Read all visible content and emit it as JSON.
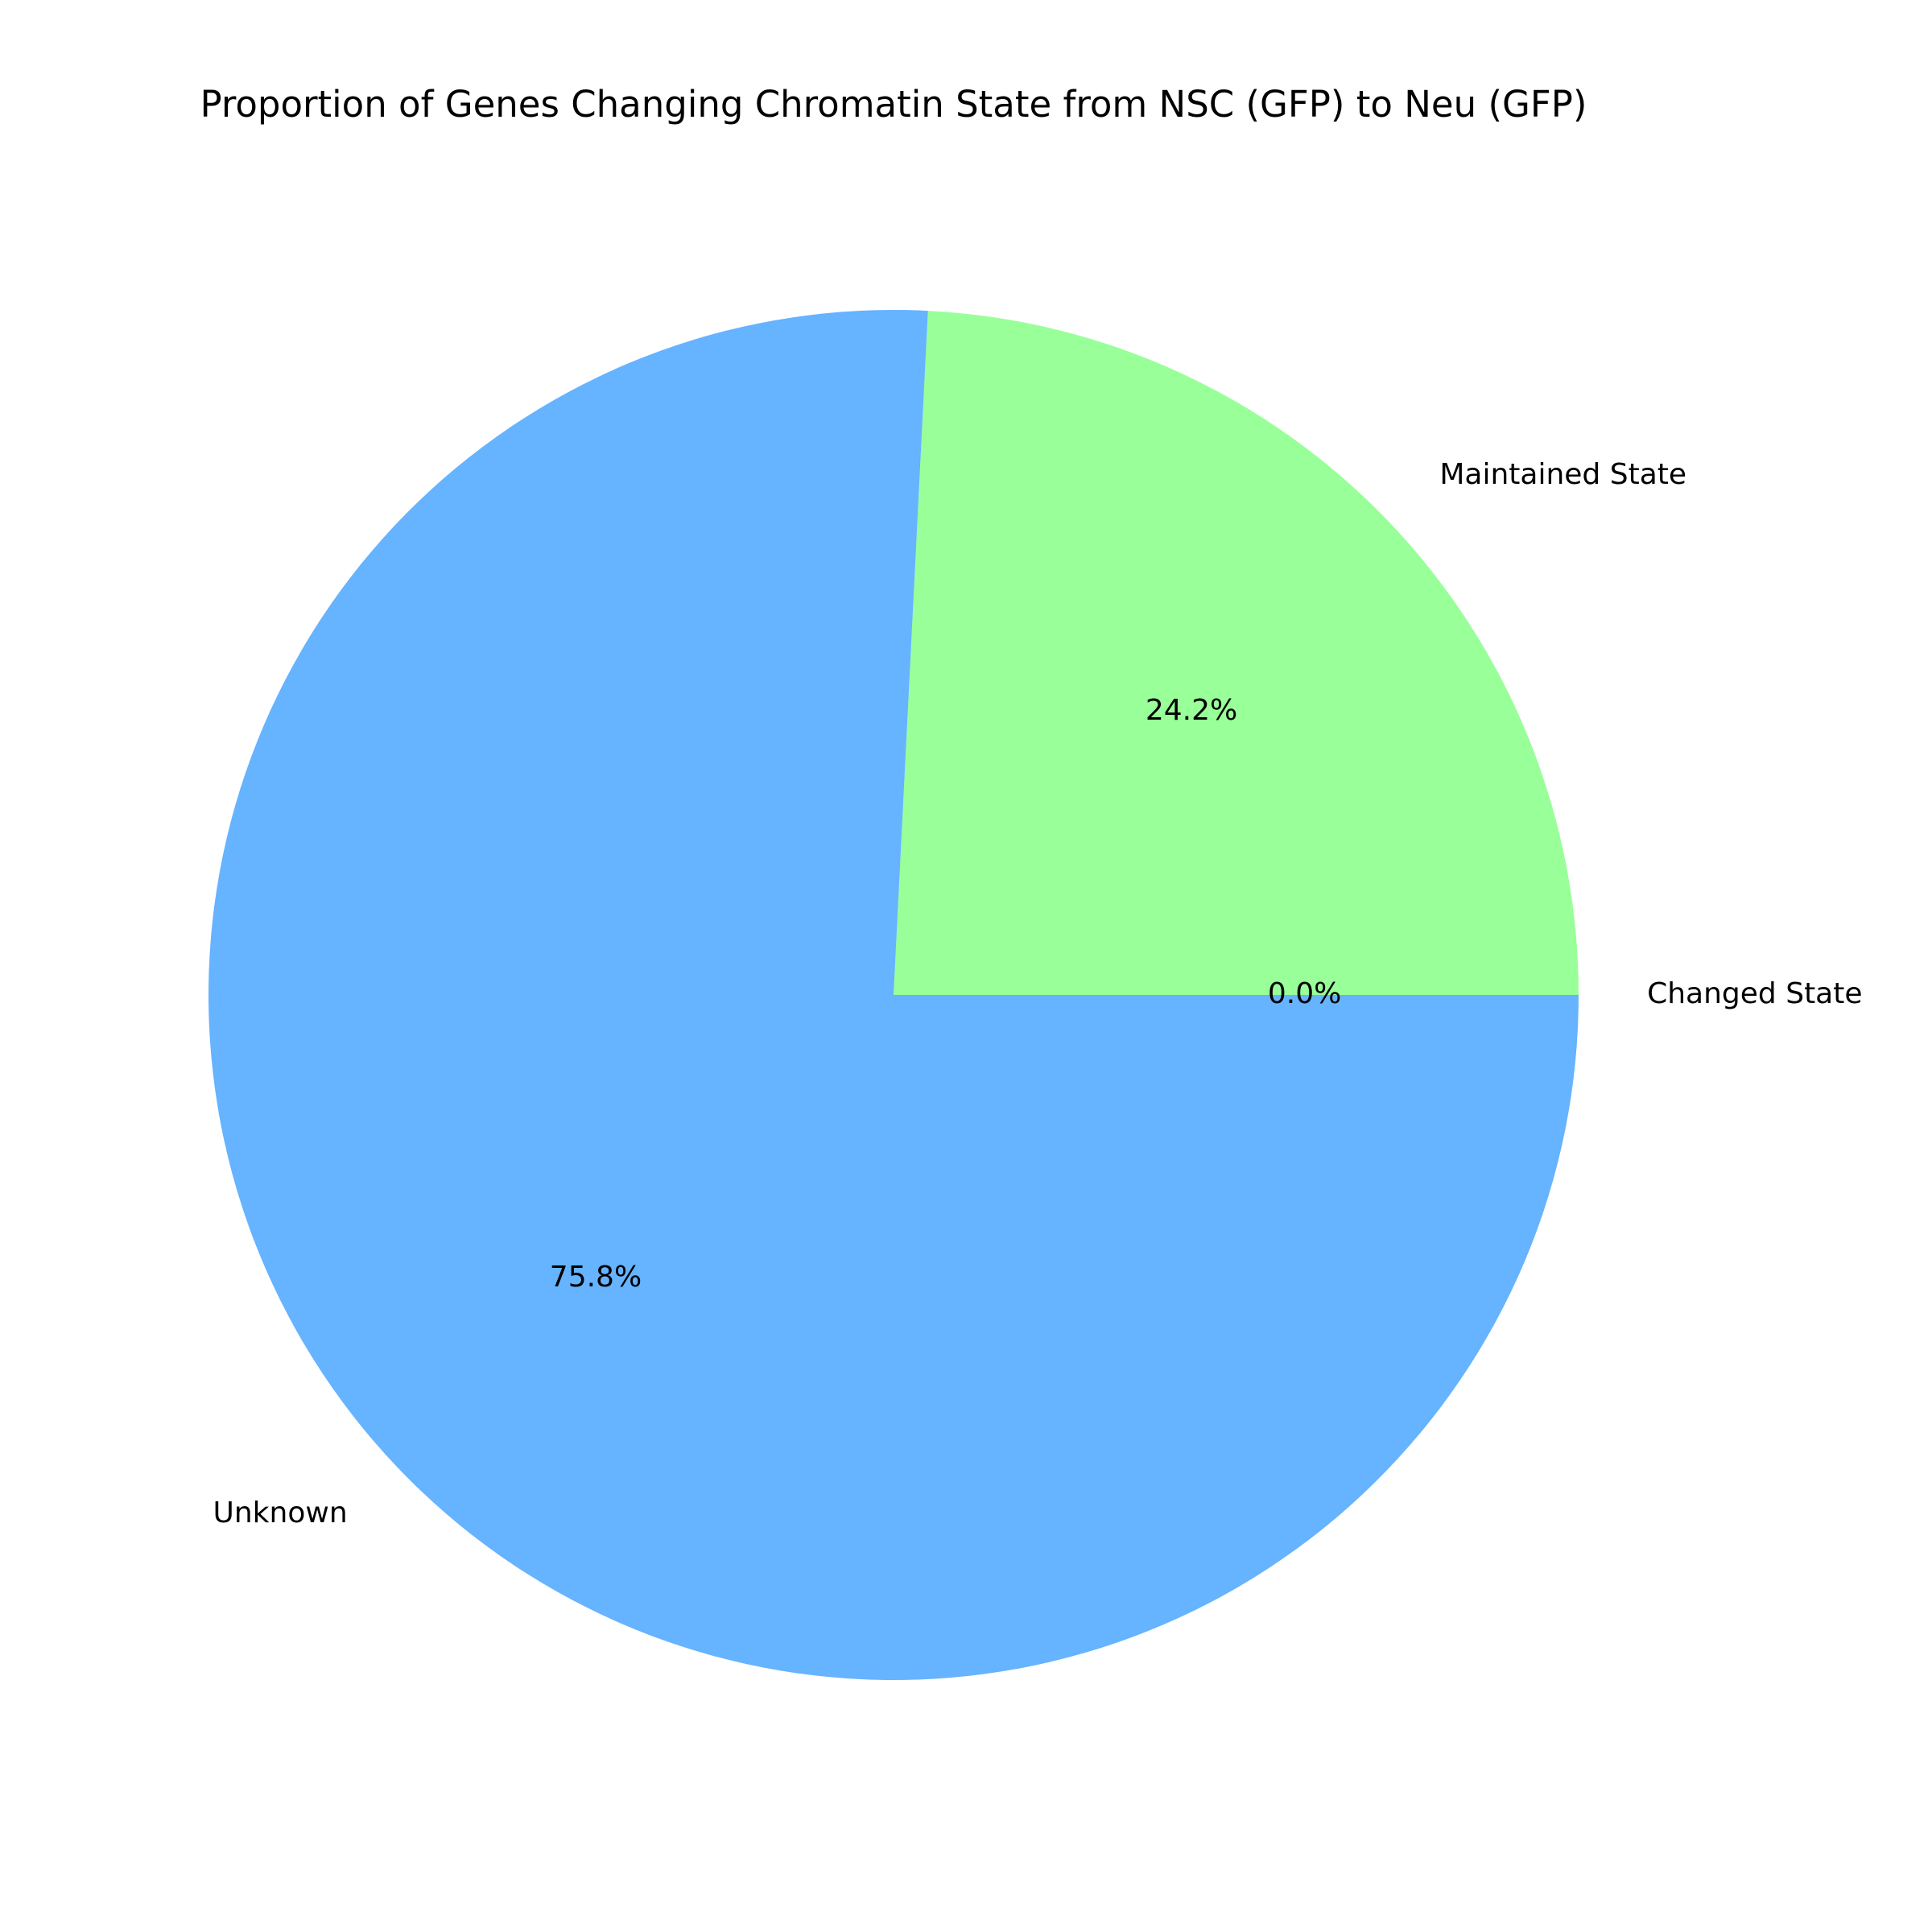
{
  "chart_data": {
    "type": "pie",
    "title": "Proportion of Genes Changing Chromatin State from NSC (GFP) to Neu (GFP)",
    "slices": [
      {
        "label": "Changed State",
        "value": 0.0,
        "pct_label": "0.0%",
        "color": "#ff9999"
      },
      {
        "label": "Maintained State",
        "value": 24.2,
        "pct_label": "24.2%",
        "color": "#99ff99"
      },
      {
        "label": "Unknown",
        "value": 75.8,
        "pct_label": "75.8%",
        "color": "#66b3ff"
      }
    ],
    "start_angle_deg": 0,
    "direction": "counterclockwise",
    "legend": "none"
  }
}
